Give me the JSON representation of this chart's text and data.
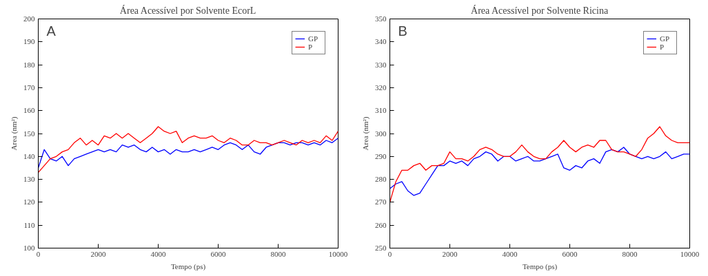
{
  "chart_data": [
    {
      "type": "line",
      "title": "Área Acessível por Solvente EcorL",
      "xlabel": "Tempo (ps)",
      "ylabel": "Area (nm²)",
      "annotations": [
        "A"
      ],
      "x": [
        0,
        200,
        400,
        600,
        800,
        1000,
        1200,
        1400,
        1600,
        1800,
        2000,
        2200,
        2400,
        2600,
        2800,
        3000,
        3200,
        3400,
        3600,
        3800,
        4000,
        4200,
        4400,
        4600,
        4800,
        5000,
        5200,
        5400,
        5600,
        5800,
        6000,
        6200,
        6400,
        6600,
        6800,
        7000,
        7200,
        7400,
        7600,
        7800,
        8000,
        8200,
        8400,
        8600,
        8800,
        9000,
        9200,
        9400,
        9600,
        9800,
        10000
      ],
      "series": [
        {
          "name": "GP",
          "color": "#0000ff",
          "values": [
            135,
            143,
            139,
            138,
            140,
            136,
            139,
            140,
            141,
            142,
            143,
            142,
            143,
            142,
            145,
            144,
            145,
            143,
            142,
            144,
            142,
            143,
            141,
            143,
            142,
            142,
            143,
            142,
            143,
            144,
            143,
            145,
            146,
            145,
            143,
            145,
            142,
            141,
            144,
            145,
            146,
            146,
            145,
            146,
            146,
            145,
            146,
            145,
            147,
            146,
            148
          ]
        },
        {
          "name": "P",
          "color": "#ff0000",
          "values": [
            133,
            136,
            139,
            140,
            142,
            143,
            146,
            148,
            145,
            147,
            145,
            149,
            148,
            150,
            148,
            150,
            148,
            146,
            148,
            150,
            153,
            151,
            150,
            151,
            146,
            148,
            149,
            148,
            148,
            149,
            147,
            146,
            148,
            147,
            145,
            145,
            147,
            146,
            146,
            145,
            146,
            147,
            146,
            145,
            147,
            146,
            147,
            146,
            149,
            147,
            151
          ]
        }
      ],
      "xlim": [
        0,
        10000
      ],
      "xticks": [
        0,
        2000,
        4000,
        6000,
        8000,
        10000
      ],
      "ylim": [
        100,
        200
      ],
      "yticks": [
        100,
        110,
        120,
        130,
        140,
        150,
        160,
        170,
        180,
        190,
        200
      ],
      "grid": false,
      "legend": "top right",
      "line_style": "solid",
      "marker": "none"
    },
    {
      "type": "line",
      "title": "Área Acessível por Solvente Ricina",
      "xlabel": "Tempo (ps)",
      "ylabel": "Area (nm²)",
      "annotations": [
        "B"
      ],
      "x": [
        0,
        200,
        400,
        600,
        800,
        1000,
        1200,
        1400,
        1600,
        1800,
        2000,
        2200,
        2400,
        2600,
        2800,
        3000,
        3200,
        3400,
        3600,
        3800,
        4000,
        4200,
        4400,
        4600,
        4800,
        5000,
        5200,
        5400,
        5600,
        5800,
        6000,
        6200,
        6400,
        6600,
        6800,
        7000,
        7200,
        7400,
        7600,
        7800,
        8000,
        8200,
        8400,
        8600,
        8800,
        9000,
        9200,
        9400,
        9600,
        9800,
        10000
      ],
      "series": [
        {
          "name": "GP",
          "color": "#0000ff",
          "values": [
            276,
            278,
            279,
            275,
            273,
            274,
            278,
            282,
            286,
            286,
            288,
            287,
            288,
            286,
            289,
            290,
            292,
            291,
            288,
            290,
            290,
            288,
            289,
            290,
            288,
            288,
            289,
            290,
            291,
            285,
            284,
            286,
            285,
            288,
            289,
            287,
            292,
            293,
            292,
            294,
            291,
            290,
            289,
            290,
            289,
            290,
            292,
            289,
            290,
            291,
            291
          ]
        },
        {
          "name": "P",
          "color": "#ff0000",
          "values": [
            270,
            279,
            284,
            284,
            286,
            287,
            284,
            286,
            286,
            287,
            292,
            289,
            289,
            288,
            290,
            293,
            294,
            293,
            291,
            290,
            290,
            292,
            295,
            292,
            290,
            289,
            289,
            292,
            294,
            297,
            294,
            292,
            294,
            295,
            294,
            297,
            297,
            293,
            292,
            292,
            291,
            290,
            293,
            298,
            300,
            303,
            299,
            297,
            296,
            296,
            296
          ]
        }
      ],
      "xlim": [
        0,
        10000
      ],
      "xticks": [
        0,
        2000,
        4000,
        6000,
        8000,
        10000
      ],
      "ylim": [
        250,
        350
      ],
      "yticks": [
        250,
        260,
        270,
        280,
        290,
        300,
        310,
        320,
        330,
        340,
        350
      ],
      "grid": false,
      "legend": "top right",
      "line_style": "solid",
      "marker": "none"
    }
  ]
}
